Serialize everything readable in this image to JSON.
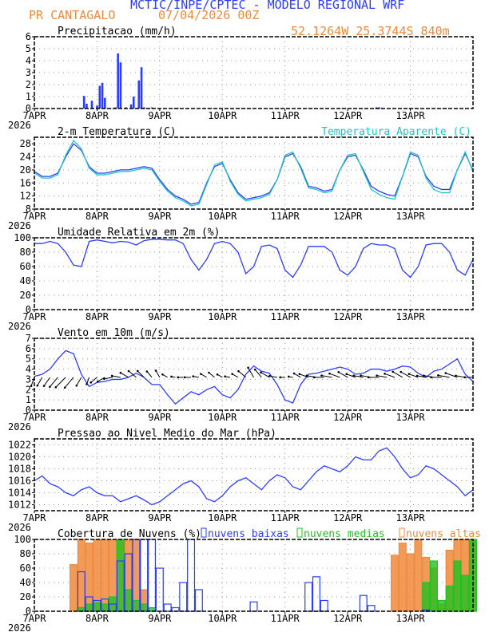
{
  "header": {
    "org": "MCTIC/INPE/CPTEC - MODELO REGIONAL WRF",
    "station": "PR CANTAGALO",
    "run": "07/04/2026 00Z",
    "location": "52.1264W 25.3744S 840m"
  },
  "colors": {
    "blue": "#2b3cff",
    "orange": "#f08a3c",
    "cyan": "#22c4c4",
    "green": "#22c022"
  },
  "chart_data": [
    {
      "type": "bar",
      "title": "Precipitacao (mm/h)",
      "ylim": [
        0,
        6
      ],
      "yticks": [
        0,
        1,
        2,
        3,
        4,
        5,
        6
      ],
      "xticks": [
        "7APR",
        "8APR",
        "9APR",
        "10APR",
        "11APR",
        "12APR",
        "13APR"
      ],
      "xyear": "2026",
      "x_hours": [
        19,
        20,
        22,
        24,
        25,
        26,
        27,
        31,
        32,
        33,
        35,
        37,
        38,
        40,
        41,
        42,
        43,
        45,
        54,
        55,
        131,
        132,
        133
      ],
      "values": [
        1.05,
        0.4,
        0.65,
        0.25,
        1.9,
        2.15,
        0.9,
        0.1,
        4.6,
        3.85,
        0.1,
        0.35,
        1.0,
        2.35,
        3.45,
        0.1,
        0.05,
        0.1,
        0.05,
        0.05,
        0.1,
        0.1,
        0.05
      ]
    },
    {
      "type": "line",
      "title": "2-m Temperatura (C)",
      "ylim": [
        8,
        30
      ],
      "yticks": [
        8,
        12,
        16,
        20,
        24,
        28
      ],
      "xticks": [
        "7APR",
        "8APR",
        "9APR",
        "10APR",
        "11APR",
        "12APR",
        "13APR"
      ],
      "xyear": "2026",
      "x_step_hours": 3,
      "series": [
        {
          "name": "",
          "color": "blue",
          "values": [
            19.5,
            18,
            18,
            19,
            24,
            28,
            26,
            21,
            19,
            19,
            19.5,
            20,
            20,
            20.5,
            21,
            20.5,
            17,
            14,
            12,
            11,
            9.5,
            10,
            16,
            21,
            22,
            17,
            13,
            11,
            11.5,
            12,
            13,
            17,
            24,
            25,
            21,
            15,
            14.5,
            13.5,
            14,
            20,
            24,
            24.5,
            20,
            15,
            13.5,
            12.5,
            12,
            18,
            25,
            24,
            18,
            15,
            14,
            14,
            20,
            25,
            20
          ]
        },
        {
          "name": "Temperatura Aparente (C)",
          "color": "cyan",
          "values": [
            19,
            17.5,
            17.5,
            18.5,
            24.5,
            29,
            26.5,
            20.5,
            18.5,
            18.5,
            19,
            19.5,
            19.5,
            20,
            20.5,
            20,
            16.5,
            13.5,
            11.5,
            10.5,
            9,
            9.5,
            15.5,
            21.5,
            22.5,
            16.5,
            12.5,
            10.5,
            11,
            11.5,
            12.5,
            17,
            24.5,
            25.5,
            20.5,
            14.5,
            14,
            13,
            13.5,
            20,
            24.5,
            25,
            19.5,
            14,
            12.5,
            11.5,
            11,
            18,
            25.5,
            24.5,
            17.5,
            14,
            13,
            13,
            20,
            25.5,
            19.5
          ]
        }
      ]
    },
    {
      "type": "line",
      "title": "Umidade Relativa em 2m (%)",
      "ylim": [
        0,
        100
      ],
      "yticks": [
        0,
        20,
        40,
        60,
        80,
        100
      ],
      "xticks": [
        "7APR",
        "8APR",
        "9APR",
        "10APR",
        "11APR",
        "12APR",
        "13APR"
      ],
      "xyear": "2026",
      "x_step_hours": 3,
      "series": [
        {
          "name": "",
          "color": "blue",
          "values": [
            92,
            92,
            95,
            92,
            80,
            62,
            60,
            95,
            97,
            95,
            93,
            95,
            94,
            90,
            96,
            98,
            98,
            97,
            97,
            92,
            70,
            55,
            70,
            92,
            95,
            92,
            80,
            50,
            60,
            88,
            90,
            85,
            55,
            45,
            62,
            88,
            88,
            88,
            80,
            55,
            48,
            60,
            85,
            92,
            90,
            90,
            85,
            55,
            45,
            60,
            90,
            92,
            92,
            80,
            55,
            48,
            70
          ]
        }
      ]
    },
    {
      "type": "line",
      "title": "Vento em 10m (m/s)",
      "ylim": [
        0,
        7
      ],
      "yticks": [
        0,
        1,
        2,
        3,
        4,
        5,
        6,
        7
      ],
      "xticks": [
        "7APR",
        "8APR",
        "9APR",
        "10APR",
        "11APR",
        "12APR",
        "13APR"
      ],
      "xyear": "2026",
      "x_step_hours": 3,
      "series": [
        {
          "name": "",
          "color": "blue",
          "values": [
            3.3,
            3.5,
            4,
            5,
            5.8,
            5.5,
            3.5,
            2.3,
            2.7,
            2.8,
            3,
            3,
            3.2,
            3.6,
            3.2,
            2.5,
            2.5,
            1.5,
            0.6,
            1.2,
            1.8,
            1.5,
            2,
            2.3,
            1.5,
            1.2,
            2,
            3.5,
            4.3,
            3.8,
            3.6,
            2.5,
            1,
            0.7,
            2.5,
            3.5,
            3.6,
            3.8,
            4,
            4.2,
            4,
            3.5,
            3.6,
            4,
            4,
            3.8,
            4,
            4.3,
            4.2,
            3.6,
            3.2,
            3.8,
            4,
            4.5,
            5,
            3.5,
            2.8
          ]
        }
      ],
      "wind_direction_to_deg": [
        200,
        210,
        215,
        220,
        225,
        220,
        210,
        200,
        230,
        240,
        260,
        280,
        300,
        310,
        315,
        320,
        330,
        300,
        280,
        270,
        270,
        280,
        300,
        310,
        300,
        280,
        300,
        310,
        330,
        320,
        300,
        280,
        270,
        280,
        300,
        290,
        280,
        270,
        280,
        290,
        300,
        290,
        280,
        280,
        270,
        280,
        290,
        300,
        300,
        290,
        280,
        280,
        270,
        280,
        290,
        280,
        270
      ]
    },
    {
      "type": "line",
      "title": "Pressao ao Nivel Medio do Mar (hPa)",
      "ylim": [
        1011,
        1023
      ],
      "yticks": [
        1012,
        1014,
        1016,
        1018,
        1020,
        1022
      ],
      "xticks": [
        "7APR",
        "8APR",
        "9APR",
        "10APR",
        "11APR",
        "12APR",
        "13APR"
      ],
      "xyear": "2026",
      "x_step_hours": 3,
      "series": [
        {
          "name": "",
          "color": "blue",
          "values": [
            1016,
            1016.8,
            1015.5,
            1015,
            1014,
            1013.5,
            1014.5,
            1015,
            1014,
            1013.5,
            1013.5,
            1012.5,
            1013,
            1013.5,
            1012.8,
            1012,
            1012.5,
            1013.5,
            1014.5,
            1015.5,
            1016,
            1015,
            1013,
            1012.5,
            1013.5,
            1015,
            1016,
            1016.5,
            1015.5,
            1014.5,
            1016,
            1017,
            1016.5,
            1015,
            1014.5,
            1016,
            1017.5,
            1018.5,
            1018,
            1017.5,
            1018.5,
            1020,
            1019.5,
            1019.5,
            1021,
            1021.5,
            1020,
            1018,
            1016.5,
            1017,
            1018.5,
            1018,
            1017,
            1016,
            1015,
            1013.5,
            1014.5
          ]
        }
      ]
    },
    {
      "type": "bar",
      "title": "Cobertura de Nuvens (%)",
      "ylim": [
        0,
        100
      ],
      "yticks": [
        0,
        20,
        40,
        60,
        80,
        100
      ],
      "xticks": [
        "7APR",
        "8APR",
        "9APR",
        "10APR",
        "11APR",
        "12APR",
        "13APR"
      ],
      "xyear": "2026",
      "x_step_hours": 3,
      "series": [
        {
          "name": "nuvens baixas",
          "color": "blue",
          "values": [
            0,
            0,
            0,
            0,
            0,
            0,
            55,
            20,
            15,
            17,
            10,
            70,
            80,
            100,
            100,
            100,
            60,
            10,
            5,
            40,
            100,
            30,
            0,
            0,
            0,
            0,
            0,
            0,
            13,
            0,
            0,
            0,
            0,
            0,
            0,
            40,
            48,
            15,
            0,
            0,
            0,
            0,
            22,
            8,
            0,
            0,
            0,
            0,
            0,
            0,
            2,
            0,
            0,
            0,
            0,
            0,
            0
          ]
        },
        {
          "name": "nuvens medias",
          "color": "green",
          "values": [
            0,
            0,
            0,
            0,
            0,
            0,
            5,
            10,
            12,
            10,
            20,
            100,
            30,
            15,
            10,
            5,
            0,
            0,
            0,
            0,
            0,
            0,
            0,
            0,
            0,
            0,
            0,
            0,
            0,
            0,
            0,
            0,
            0,
            0,
            0,
            0,
            0,
            0,
            0,
            0,
            0,
            0,
            0,
            0,
            0,
            0,
            0,
            0,
            0,
            0,
            40,
            70,
            15,
            35,
            70,
            50,
            100
          ]
        },
        {
          "name": "nuvens altas",
          "color": "orange",
          "values": [
            0,
            0,
            0,
            0,
            0,
            65,
            100,
            95,
            100,
            100,
            100,
            100,
            100,
            100,
            30,
            0,
            0,
            0,
            0,
            0,
            0,
            0,
            0,
            0,
            0,
            0,
            0,
            0,
            0,
            0,
            0,
            0,
            0,
            0,
            0,
            0,
            0,
            0,
            0,
            0,
            0,
            0,
            0,
            0,
            0,
            0,
            78,
            95,
            80,
            100,
            75,
            60,
            10,
            85,
            100,
            100,
            100
          ]
        }
      ]
    }
  ]
}
